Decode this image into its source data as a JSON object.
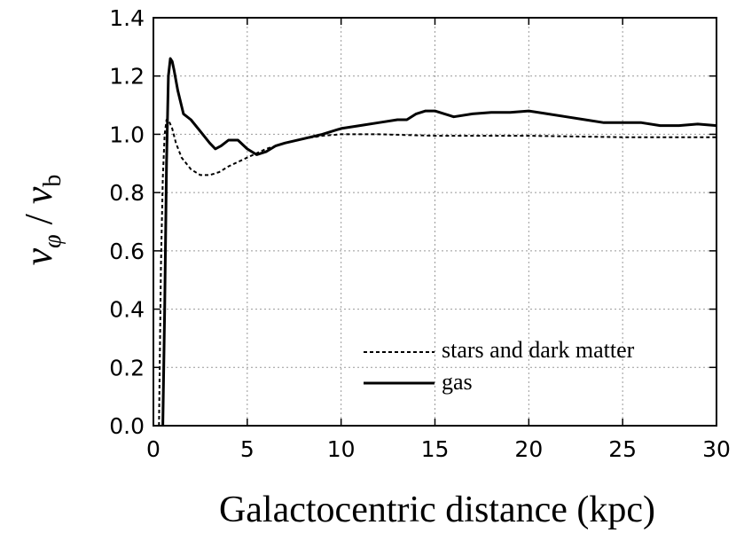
{
  "chart_data": {
    "type": "line",
    "xlabel": "Galactocentric distance (kpc)",
    "ylabel": {
      "main": "v",
      "sub1": "φ",
      "sep": " / ",
      "main2": "v",
      "sub2": "b"
    },
    "xlim": [
      0,
      30
    ],
    "ylim": [
      0,
      1.4
    ],
    "x_ticks": [
      0,
      5,
      10,
      15,
      20,
      25,
      30
    ],
    "x_tick_labels": [
      "0",
      "5",
      "10",
      "15",
      "20",
      "25",
      "30"
    ],
    "y_ticks": [
      0,
      0.2,
      0.4,
      0.6,
      0.8,
      1.0,
      1.2,
      1.4
    ],
    "y_tick_labels": [
      "0.0",
      "0.2",
      "0.4",
      "0.6",
      "0.8",
      "1.0",
      "1.2",
      "1.4"
    ],
    "grid": true,
    "legend_position": "bottom-right",
    "series": [
      {
        "name": "stars and dark matter",
        "style": "dashed",
        "color": "#000000",
        "x": [
          0.3,
          0.4,
          0.5,
          0.6,
          0.7,
          0.8,
          1.0,
          1.2,
          1.5,
          2.0,
          2.5,
          3.0,
          3.5,
          4.0,
          5.0,
          6.0,
          7.0,
          8.0,
          9.0,
          10.0,
          12.0,
          15.0,
          20.0,
          25.0,
          30.0
        ],
        "y": [
          0.0,
          0.55,
          0.85,
          1.0,
          1.05,
          1.05,
          1.02,
          0.97,
          0.92,
          0.88,
          0.86,
          0.86,
          0.87,
          0.89,
          0.92,
          0.95,
          0.97,
          0.985,
          0.995,
          1.0,
          1.0,
          0.995,
          0.995,
          0.99,
          0.99
        ]
      },
      {
        "name": "gas",
        "style": "solid",
        "color": "#000000",
        "x": [
          0.5,
          0.6,
          0.7,
          0.8,
          0.9,
          1.0,
          1.1,
          1.3,
          1.6,
          2.0,
          2.5,
          3.0,
          3.3,
          3.6,
          4.0,
          4.5,
          5.0,
          5.5,
          6.0,
          6.5,
          7.0,
          8.0,
          9.0,
          10.0,
          11.0,
          12.0,
          13.0,
          13.5,
          14.0,
          14.5,
          15.0,
          16.0,
          17.0,
          18.0,
          19.0,
          20.0,
          21.0,
          22.0,
          23.0,
          24.0,
          25.0,
          26.0,
          27.0,
          28.0,
          29.0,
          30.0
        ],
        "y": [
          0.0,
          0.4,
          0.9,
          1.2,
          1.26,
          1.25,
          1.22,
          1.15,
          1.07,
          1.05,
          1.01,
          0.97,
          0.95,
          0.96,
          0.98,
          0.98,
          0.95,
          0.93,
          0.94,
          0.96,
          0.97,
          0.985,
          1.0,
          1.02,
          1.03,
          1.04,
          1.05,
          1.05,
          1.07,
          1.08,
          1.08,
          1.06,
          1.07,
          1.075,
          1.075,
          1.08,
          1.07,
          1.06,
          1.05,
          1.04,
          1.04,
          1.04,
          1.03,
          1.03,
          1.035,
          1.03
        ]
      }
    ]
  }
}
